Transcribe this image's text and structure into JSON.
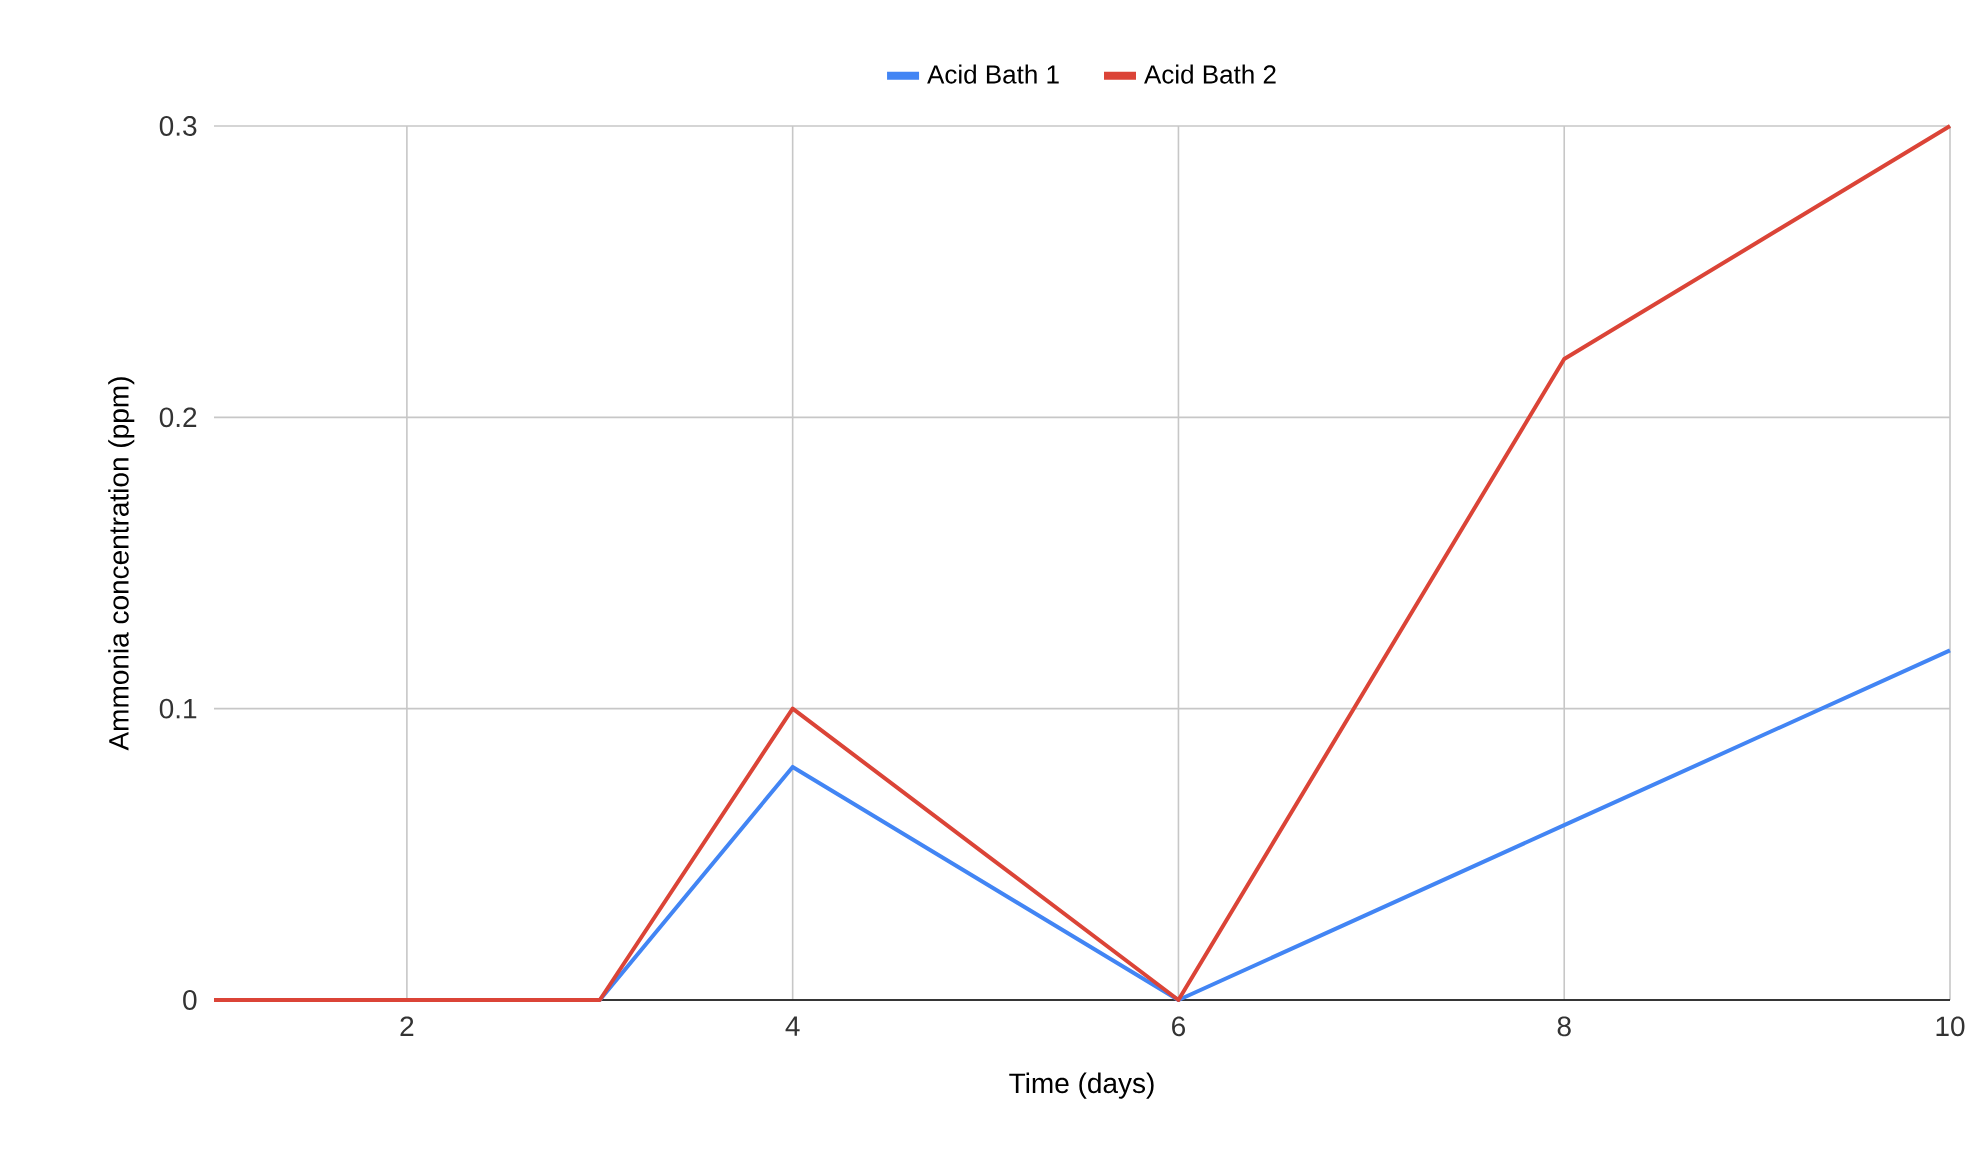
{
  "chart_data": {
    "type": "line",
    "xlabel": "Time (days)",
    "ylabel": "Ammonia concentration (ppm)",
    "x": [
      1,
      2,
      3,
      4,
      5,
      6,
      7,
      8,
      9,
      10
    ],
    "series": [
      {
        "name": "Acid Bath 1",
        "color": "#4285f4",
        "values": [
          0,
          0,
          0,
          0.08,
          0.04,
          0,
          0.03,
          0.06,
          0.09,
          0.12
        ]
      },
      {
        "name": "Acid Bath 2",
        "color": "#db4437",
        "values": [
          0,
          0,
          0,
          0.1,
          0.05,
          0,
          0.11,
          0.22,
          0.26,
          0.3
        ]
      }
    ],
    "xlim": [
      1,
      10
    ],
    "xticks": [
      2,
      4,
      6,
      8,
      10
    ],
    "ylim": [
      0,
      0.3
    ],
    "yticks": [
      0,
      0.1,
      0.2,
      0.3
    ],
    "grid": true,
    "legend": "top",
    "line_style": "solid"
  }
}
